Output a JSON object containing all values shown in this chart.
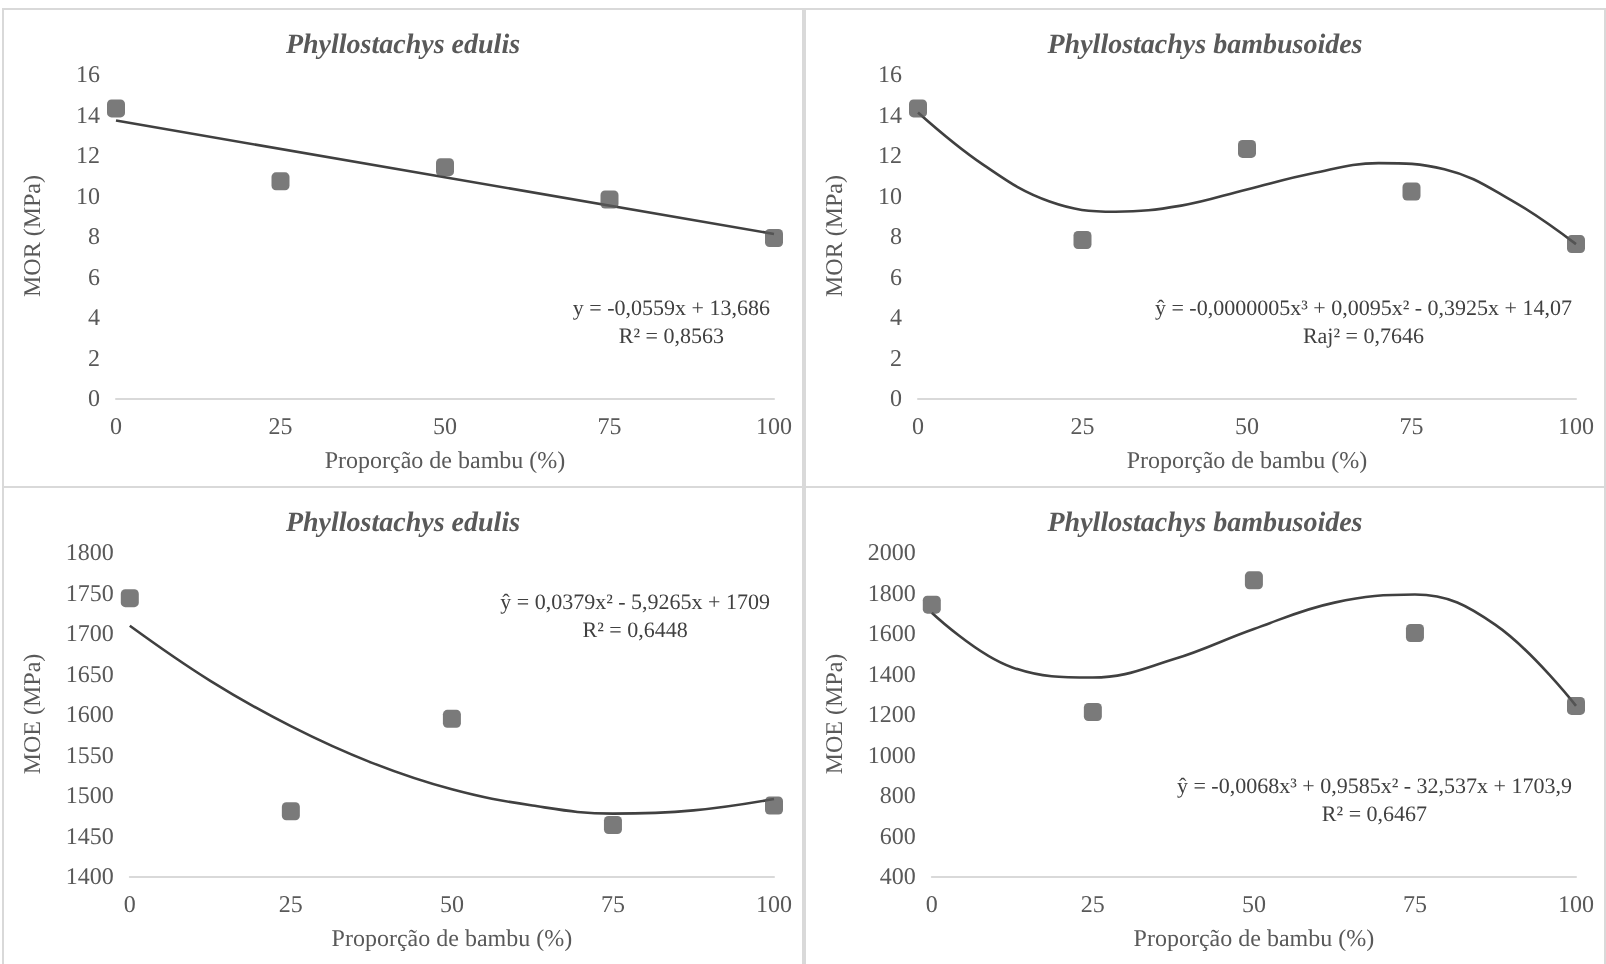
{
  "chart_data": [
    {
      "type": "scatter",
      "title": "Phyllostachys edulis",
      "xlabel": "Proporção de bambu (%)",
      "ylabel": "MOR (MPa)",
      "x": [
        0,
        25,
        50,
        75,
        100
      ],
      "xlim": [
        0,
        100
      ],
      "xticks": [
        0,
        25,
        50,
        75,
        100
      ],
      "ylim": [
        0,
        16
      ],
      "yticks": [
        0,
        2,
        4,
        6,
        8,
        10,
        12,
        14,
        16
      ],
      "grid": false,
      "series": [
        {
          "color": "#595959",
          "marker": "square",
          "values": [
            14.3,
            10.7,
            11.4,
            9.8,
            7.9
          ]
        },
        {
          "type": "line",
          "color": "#404040",
          "marker": "none",
          "x": [
            0,
            100
          ],
          "values": [
            13.7,
            8.1
          ]
        }
      ],
      "annotations": [
        "y = -0,0559x + 13,686",
        "R² = 0,8563"
      ]
    },
    {
      "type": "scatter",
      "title": "Phyllostachys bambusoides",
      "xlabel": "Proporção de bambu (%)",
      "ylabel": "MOR (MPa)",
      "x": [
        0,
        25,
        50,
        75,
        100
      ],
      "xlim": [
        0,
        100
      ],
      "xticks": [
        0,
        25,
        50,
        75,
        100
      ],
      "ylim": [
        0,
        16
      ],
      "yticks": [
        0,
        2,
        4,
        6,
        8,
        10,
        12,
        14,
        16
      ],
      "grid": false,
      "series": [
        {
          "color": "#595959",
          "marker": "square",
          "values": [
            14.3,
            7.8,
            12.3,
            10.2,
            7.6
          ]
        },
        {
          "type": "line",
          "color": "#404040",
          "marker": "none",
          "x": [
            0,
            10,
            20,
            30,
            40,
            50,
            60,
            70,
            80,
            90,
            100
          ],
          "values": [
            14.1,
            11.5,
            9.7,
            9.2,
            9.5,
            10.3,
            11.1,
            11.6,
            11.3,
            9.8,
            7.6
          ]
        }
      ],
      "annotations": [
        "ŷ = -0,0000005x³ + 0,0095x² - 0,3925x + 14,07",
        "Raj² = 0,7646"
      ]
    },
    {
      "type": "scatter",
      "title": "Phyllostachys edulis",
      "xlabel": "Proporção de bambu (%)",
      "ylabel": "MOE (MPa)",
      "x": [
        0,
        25,
        50,
        75,
        100
      ],
      "xlim": [
        0,
        100
      ],
      "xticks": [
        0,
        25,
        50,
        75,
        100
      ],
      "ylim": [
        1400,
        1800
      ],
      "yticks": [
        1400,
        1450,
        1500,
        1550,
        1600,
        1650,
        1700,
        1750,
        1800
      ],
      "grid": false,
      "series": [
        {
          "color": "#595959",
          "marker": "square",
          "values": [
            1743,
            1480,
            1594,
            1463,
            1487
          ]
        },
        {
          "type": "line",
          "color": "#404040",
          "marker": "none",
          "x": [
            0,
            12.5,
            25,
            37.5,
            50,
            62.5,
            75,
            87.5,
            100
          ],
          "values": [
            1709,
            1641,
            1585,
            1540,
            1507,
            1487,
            1477,
            1481,
            1495
          ]
        }
      ],
      "annotations": [
        "ŷ = 0,0379x² - 5,9265x + 1709",
        "R² = 0,6448"
      ]
    },
    {
      "type": "scatter",
      "title": "Phyllostachys bambusoides",
      "xlabel": "Proporção de bambu (%)",
      "ylabel": "MOE (MPa)",
      "x": [
        0,
        25,
        50,
        75,
        100
      ],
      "xlim": [
        0,
        100
      ],
      "xticks": [
        0,
        25,
        50,
        75,
        100
      ],
      "ylim": [
        400,
        2000
      ],
      "yticks": [
        400,
        600,
        800,
        1000,
        1200,
        1400,
        1600,
        1800,
        2000
      ],
      "grid": false,
      "series": [
        {
          "color": "#595959",
          "marker": "square",
          "values": [
            1740,
            1210,
            1860,
            1600,
            1240
          ]
        },
        {
          "type": "line",
          "color": "#404040",
          "marker": "none",
          "x": [
            0,
            12.5,
            25,
            37.5,
            50,
            62.5,
            75,
            87.5,
            100
          ],
          "values": [
            1700,
            1430,
            1380,
            1470,
            1620,
            1750,
            1790,
            1640,
            1240
          ]
        }
      ],
      "annotations": [
        "ŷ = -0,0068x³ + 0,9585x² - 32,537x + 1703,9",
        "R² = 0,6467"
      ]
    }
  ]
}
